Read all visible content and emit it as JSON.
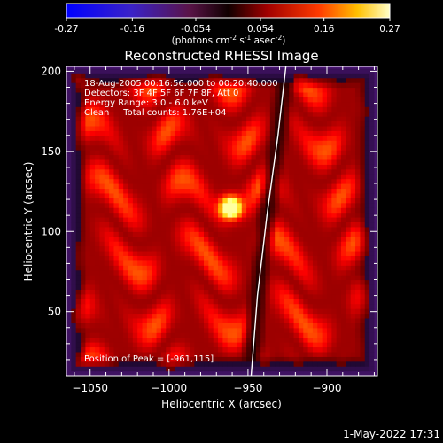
{
  "colorbar": {
    "ticks": [
      "-0.27",
      "-0.16",
      "-0.054",
      "0.054",
      "0.16",
      "0.27"
    ],
    "tick_values": [
      -0.27,
      -0.16,
      -0.054,
      0.054,
      0.16,
      0.27
    ],
    "range": [
      -0.27,
      0.27
    ],
    "units_prefix": "(photons cm",
    "units_sup1": "-2",
    "units_mid1": " s",
    "units_sup2": "-1",
    "units_mid2": " asec",
    "units_sup3": "-2",
    "units_suffix": ")"
  },
  "title": "Reconstructed RHESSI Image",
  "info_lines": [
    "18-Aug-2005 00:16:56.000 to 00:20:40.000",
    "Detectors: 3F 4F 5F 6F 7F 8F, Att 0",
    "Energy Range: 3.0 - 6.0 keV",
    "Clean     Total counts: 1.76E+04"
  ],
  "peak_label": "Position of Peak = [-961,115]",
  "footer_date": "1-May-2022 17:31",
  "chart_data": {
    "type": "heatmap",
    "title": "Reconstructed RHESSI Image",
    "xlabel": "Heliocentric X (arcsec)",
    "ylabel": "Heliocentric Y (arcsec)",
    "xlim": [
      -1065,
      -868
    ],
    "ylim": [
      10,
      203
    ],
    "x_ticks": [
      -1050,
      -1000,
      -950,
      -900
    ],
    "y_ticks": [
      50,
      100,
      150,
      200
    ],
    "x_tick_labels": [
      "−1050",
      "−1000",
      "−950",
      "−900"
    ],
    "y_tick_labels": [
      "50",
      "100",
      "150",
      "200"
    ],
    "colormap": "hot (blue for negative)",
    "value_range": [
      -0.27,
      0.27
    ],
    "peak": {
      "x": -961,
      "y": 115,
      "value": 0.27
    },
    "limb": [
      [
        -948,
        10
      ],
      [
        -944,
        60
      ],
      [
        -938,
        110
      ],
      [
        -931,
        160
      ],
      [
        -926,
        203
      ]
    ]
  }
}
